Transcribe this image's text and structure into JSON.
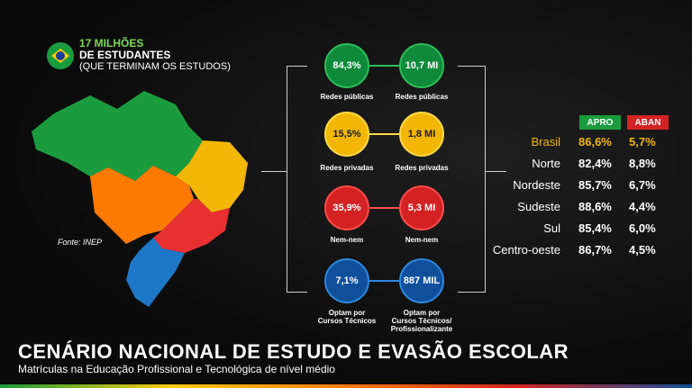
{
  "header": {
    "line1": "17 MILHÕES",
    "line2": "DE ESTUDANTES",
    "line3": "(QUE TERMINAM OS ESTUDOS)"
  },
  "source": "Fonte: INEP",
  "rows": [
    {
      "left": {
        "value": "84,3%",
        "label": "Redes públicas"
      },
      "right": {
        "value": "10,7 MI",
        "label": "Redes públicas"
      },
      "color": "green"
    },
    {
      "left": {
        "value": "15,5%",
        "label": "Redes privadas"
      },
      "right": {
        "value": "1,8 MI",
        "label": "Redes privadas"
      },
      "color": "yellow"
    },
    {
      "left": {
        "value": "35,9%",
        "label": "Nem-nem"
      },
      "right": {
        "value": "5,3 MI",
        "label": "Nem-nem"
      },
      "color": "red"
    },
    {
      "left": {
        "value": "7,1%",
        "label": "Optam por\nCursos Técnicos"
      },
      "right": {
        "value": "887 MIL",
        "label": "Optam por\nCursos Técnicos/\nProfissionalizante"
      },
      "color": "blue"
    }
  ],
  "table": {
    "headers": {
      "apro": "APRO",
      "aban": "ABAN"
    },
    "rows": [
      {
        "region": "Brasil",
        "apro": "86,6%",
        "aban": "5,7%"
      },
      {
        "region": "Norte",
        "apro": "82,4%",
        "aban": "8,8%"
      },
      {
        "region": "Nordeste",
        "apro": "85,7%",
        "aban": "6,7%"
      },
      {
        "region": "Sudeste",
        "apro": "88,6%",
        "aban": "4,4%"
      },
      {
        "region": "Sul",
        "apro": "85,4%",
        "aban": "6,0%"
      },
      {
        "region": "Centro-oeste",
        "apro": "86,7%",
        "aban": "4,5%"
      }
    ]
  },
  "colors": {
    "green": "#0f8a3a",
    "yellow": "#f2b705",
    "red": "#d42222",
    "blue": "#10509a",
    "orange": "#ff7a00",
    "highlight": "#f2b705",
    "apro_header": "#1a9c3e",
    "aban_header": "#d42222"
  },
  "footer": {
    "title": "CENÁRIO NACIONAL DE ESTUDO E EVASÃO ESCOLAR",
    "subtitle": "Matrículas na Educação Profissional e Tecnológica de nível médio"
  }
}
